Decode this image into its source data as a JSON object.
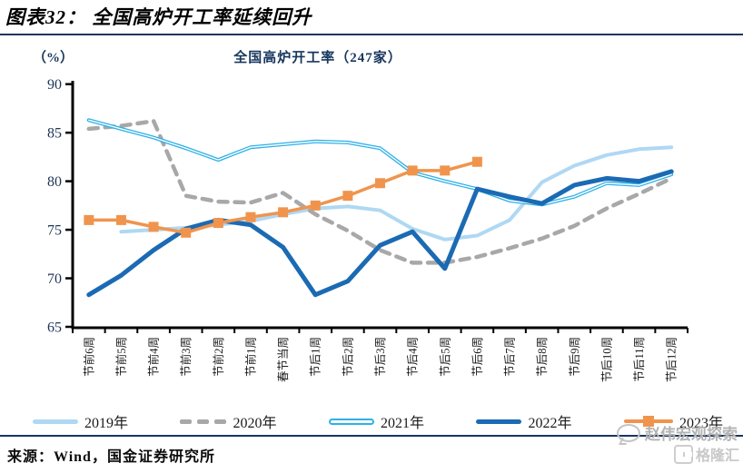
{
  "header": {
    "title": "图表32： 全国高炉开工率延续回升"
  },
  "chart_data": {
    "type": "line",
    "title": "全国高炉开工率（247家）",
    "unit_label": "（%）",
    "ylim": [
      65,
      90
    ],
    "yticks": [
      90,
      85,
      80,
      75,
      70,
      65
    ],
    "grid": false,
    "legend_position": "bottom",
    "categories": [
      "节前6周",
      "节前5周",
      "节前4周",
      "节前3周",
      "节前2周",
      "节前1周",
      "春节当周",
      "节后1周",
      "节后2周",
      "节后3周",
      "节后4周",
      "节后5周",
      "节后6周",
      "节后7周",
      "节后8周",
      "节后9周",
      "节后10周",
      "节后11周",
      "节后12周"
    ],
    "series": [
      {
        "name": "2019年",
        "color": "#AFD8F3",
        "style": "solid",
        "values": [
          null,
          74.8,
          75.0,
          75.2,
          75.5,
          75.9,
          76.6,
          77.2,
          77.4,
          77.0,
          75.1,
          74.0,
          74.4,
          76.0,
          79.9,
          81.6,
          82.7,
          83.3,
          83.5
        ]
      },
      {
        "name": "2020年",
        "color": "#A8A8A8",
        "style": "dashed",
        "values": [
          85.4,
          85.7,
          86.2,
          78.5,
          77.9,
          77.8,
          78.8,
          76.6,
          74.9,
          72.9,
          71.6,
          71.6,
          72.2,
          73.1,
          74.1,
          75.4,
          77.2,
          78.7,
          80.3
        ]
      },
      {
        "name": "2021年",
        "color": "#2EB0E6",
        "style": "double",
        "values": [
          86.3,
          85.4,
          84.5,
          83.4,
          82.2,
          83.5,
          83.8,
          84.1,
          84.0,
          83.4,
          80.9,
          80.0,
          79.2,
          78.0,
          77.6,
          78.4,
          79.8,
          79.6,
          80.7
        ]
      },
      {
        "name": "2022年",
        "color": "#1B6AB3",
        "style": "bold",
        "values": [
          68.3,
          70.3,
          72.9,
          75.1,
          76.0,
          75.5,
          73.2,
          68.3,
          69.7,
          73.4,
          74.8,
          71.0,
          79.2,
          78.4,
          77.7,
          79.6,
          80.3,
          80.0,
          81.0
        ]
      },
      {
        "name": "2023年",
        "color": "#F0944D",
        "style": "square-marker",
        "values": [
          76.0,
          76.0,
          75.3,
          74.7,
          75.7,
          76.3,
          76.8,
          77.5,
          78.5,
          79.8,
          81.1,
          81.1,
          82.0
        ]
      }
    ]
  },
  "footer": {
    "source": "来源：Wind，国金证券研究所"
  },
  "watermark": {
    "text": "赵伟宏观探索",
    "logo_text": "格隆汇"
  }
}
